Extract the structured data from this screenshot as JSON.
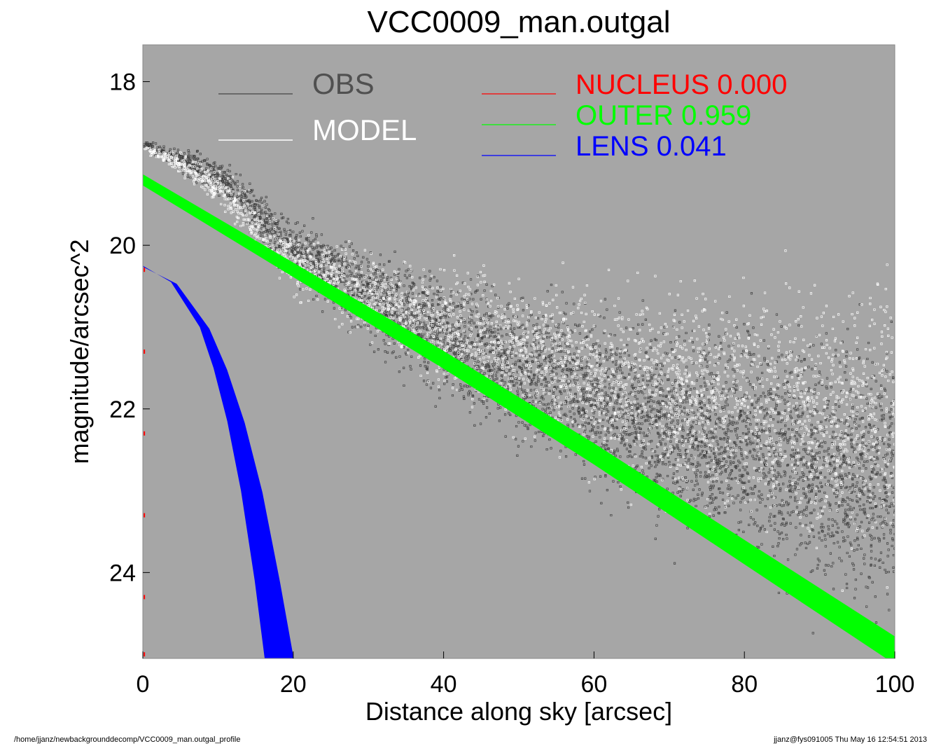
{
  "chart_data": {
    "type": "scatter",
    "title": "VCC0009_man.outgal",
    "xlabel": "Distance along sky [arcsec]",
    "ylabel": "magnitude/arcsec^2",
    "xlim": [
      0,
      100
    ],
    "ylim": [
      25.05,
      17.55
    ],
    "x_ticks": [
      "0",
      "20",
      "40",
      "60",
      "80",
      "100"
    ],
    "y_ticks": [
      "18",
      "20",
      "22",
      "24"
    ],
    "x_tick_values": [
      0,
      20,
      40,
      60,
      80,
      100
    ],
    "y_tick_values": [
      18,
      20,
      22,
      24
    ],
    "y_inverted": true,
    "background_color": "#a6a6a6",
    "legend_placement": "top",
    "legend": [
      {
        "label": "OBS",
        "color": "#555555"
      },
      {
        "label": "MODEL",
        "color": "#ffffff"
      }
    ],
    "components": [
      {
        "label": "NUCLEUS",
        "value": "0.000",
        "color": "#ff0000"
      },
      {
        "label": "OUTER",
        "value": "0.959",
        "color": "#00ff00"
      },
      {
        "label": "LENS",
        "value": "0.041",
        "color": "#0000ff"
      }
    ],
    "series": [
      {
        "name": "OBS",
        "color": "#404040",
        "x": [
          0,
          5,
          10,
          15,
          20,
          30,
          40,
          50,
          60,
          70,
          80,
          90,
          100
        ],
        "y": [
          18.75,
          18.95,
          19.15,
          19.6,
          20.05,
          20.6,
          21.1,
          21.5,
          21.9,
          22.2,
          22.5,
          22.7,
          22.9
        ]
      },
      {
        "name": "MODEL",
        "color": "#ffffff",
        "x": [
          0,
          5,
          10,
          15,
          20,
          30,
          40,
          50,
          60,
          70,
          80,
          90,
          100
        ],
        "y": [
          18.8,
          19.0,
          19.3,
          19.75,
          20.2,
          20.6,
          21.0,
          21.3,
          21.6,
          21.8,
          22.0,
          22.1,
          22.2
        ]
      },
      {
        "name": "OUTER",
        "color": "#00ff00",
        "x": [
          0,
          20,
          40,
          60,
          80,
          100
        ],
        "y": [
          19.2,
          20.3,
          21.4,
          22.55,
          23.75,
          24.95
        ]
      },
      {
        "name": "LENS",
        "color": "#0000ff",
        "x": [
          0,
          4,
          8,
          10,
          12,
          14,
          16,
          17.5
        ],
        "y": [
          20.25,
          20.45,
          21.0,
          21.5,
          22.15,
          23.0,
          24.1,
          25.05
        ]
      },
      {
        "name": "NUCLEUS",
        "color": "#ff0000",
        "x": [
          0.2,
          0.2,
          0.2,
          0.2,
          0.2,
          0.2
        ],
        "y": [
          20.3,
          21.3,
          22.3,
          23.3,
          24.3,
          25.0
        ]
      }
    ]
  },
  "footer": {
    "left": "/home/jjanz/newbackgrounddecomp/VCC0009_man.outgal_profile",
    "right": "jjanz@fys091005  Thu May 16 12:54:51 2013"
  }
}
